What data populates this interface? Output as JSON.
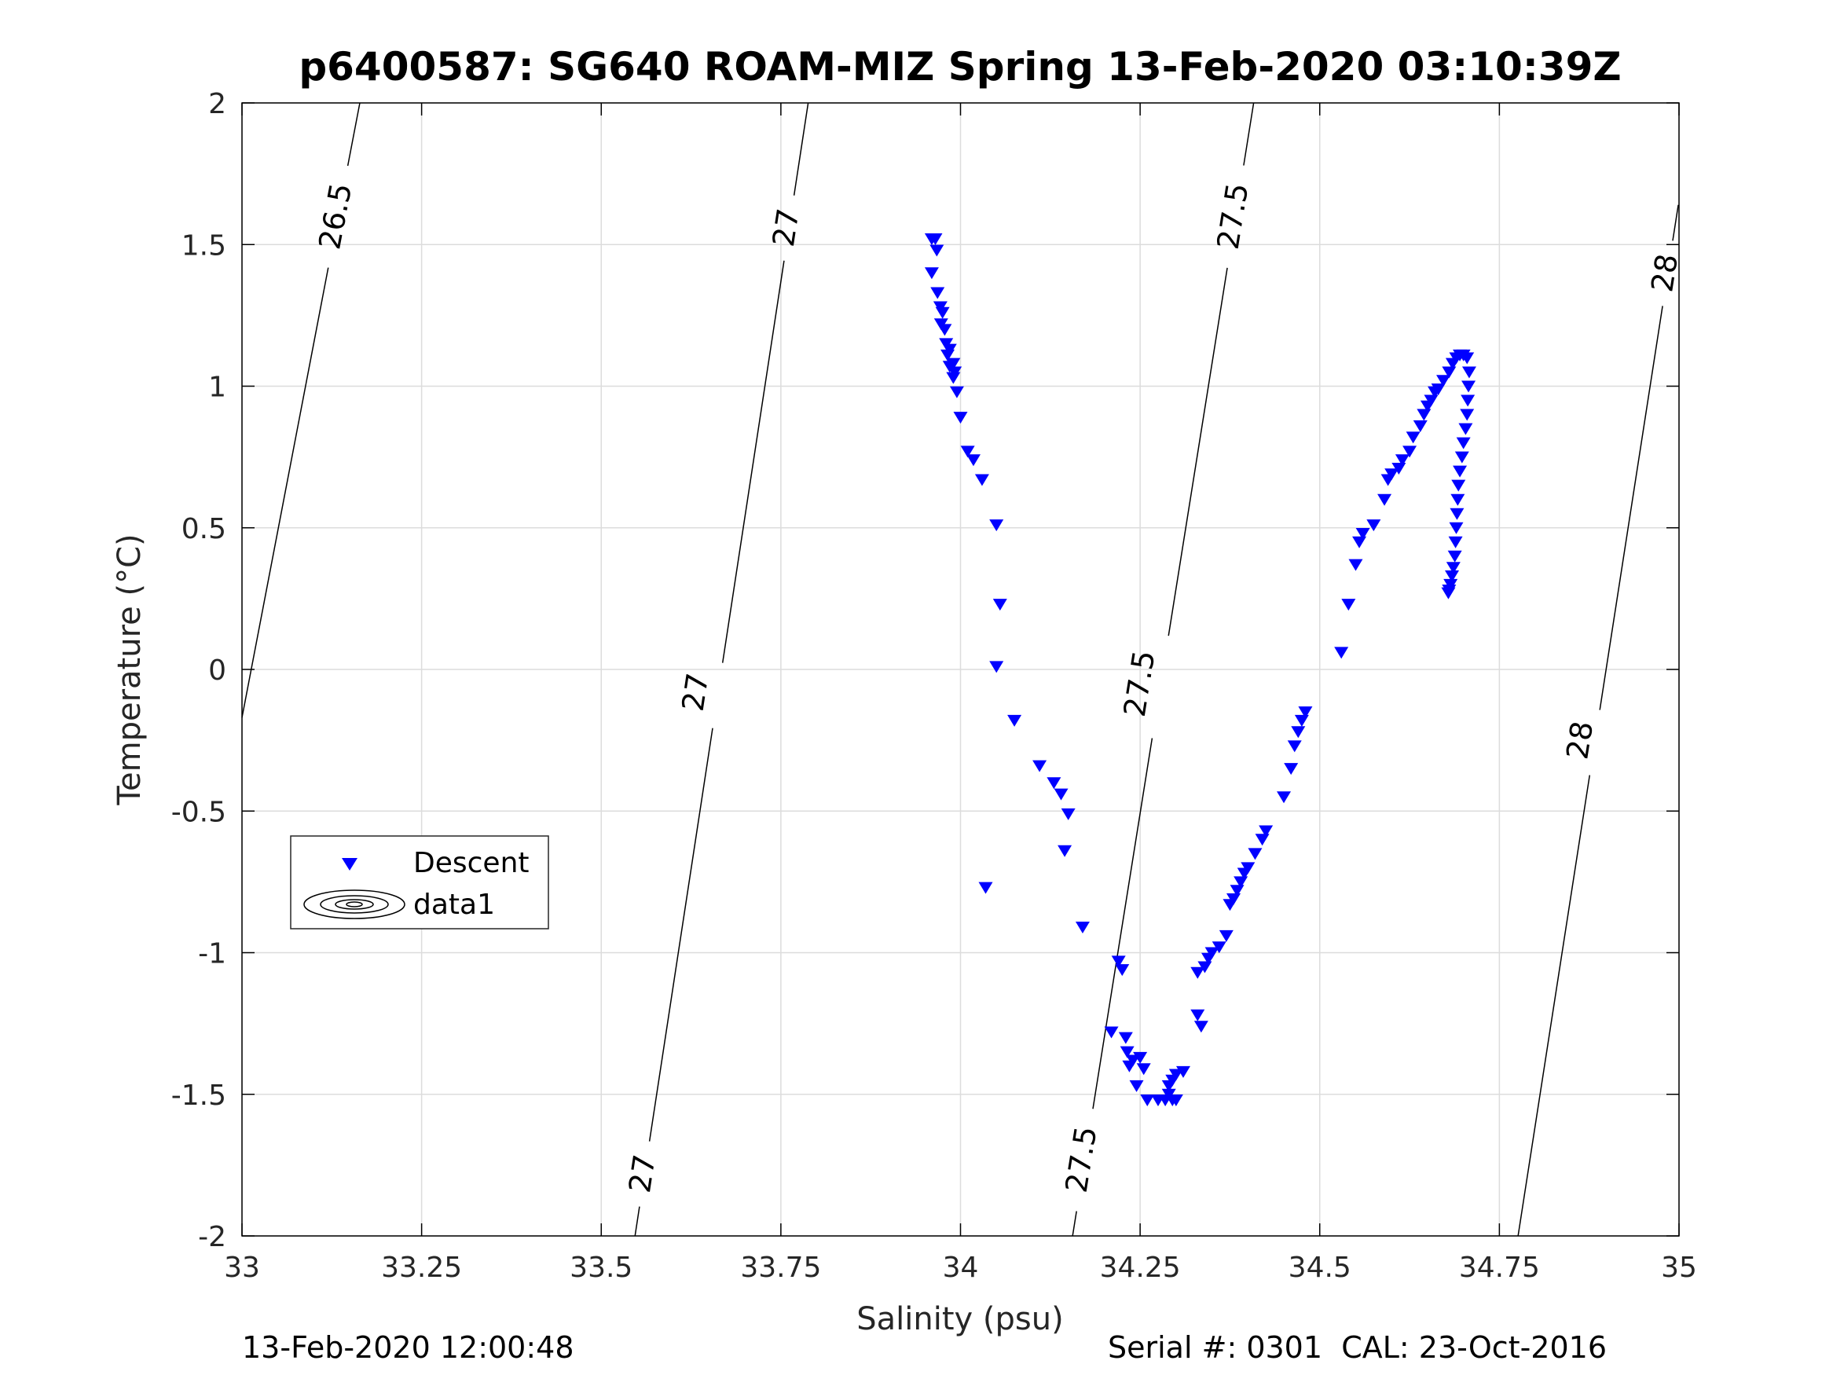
{
  "chart_data": {
    "type": "scatter",
    "title": "p6400587: SG640 ROAM-MIZ Spring 13-Feb-2020 03:10:39Z",
    "xlabel": "Salinity (psu)",
    "ylabel": "Temperature (°C)",
    "xlim": [
      33,
      35
    ],
    "ylim": [
      -2,
      2
    ],
    "xticks": [
      33,
      33.25,
      33.5,
      33.75,
      34,
      34.25,
      34.5,
      34.75,
      35
    ],
    "xtick_labels": [
      "33",
      "33.25",
      "33.5",
      "33.75",
      "34",
      "34.25",
      "34.5",
      "34.75",
      "35"
    ],
    "yticks": [
      -2,
      -1.5,
      -1,
      -0.5,
      0,
      0.5,
      1,
      1.5,
      2
    ],
    "ytick_labels": [
      "-2",
      "-1.5",
      "-1",
      "-0.5",
      "0",
      "0.5",
      "1",
      "1.5",
      "2"
    ],
    "grid": true,
    "legend_position": "lower-left",
    "legend": [
      {
        "label": "Descent",
        "marker": "down-triangle",
        "color": "#0000ff"
      },
      {
        "label": "data1",
        "marker": "contour-ellipses",
        "color": "#000000"
      }
    ],
    "series": [
      {
        "name": "Descent",
        "marker": "down-triangle",
        "color": "#0000ff",
        "points": [
          [
            33.96,
            1.52
          ],
          [
            33.965,
            1.52
          ],
          [
            33.967,
            1.48
          ],
          [
            33.96,
            1.4
          ],
          [
            33.968,
            1.33
          ],
          [
            33.972,
            1.28
          ],
          [
            33.975,
            1.26
          ],
          [
            33.973,
            1.22
          ],
          [
            33.978,
            1.2
          ],
          [
            33.98,
            1.15
          ],
          [
            33.985,
            1.13
          ],
          [
            33.982,
            1.11
          ],
          [
            33.99,
            1.08
          ],
          [
            33.985,
            1.07
          ],
          [
            33.992,
            1.05
          ],
          [
            33.99,
            1.03
          ],
          [
            33.995,
            0.98
          ],
          [
            34.0,
            0.89
          ],
          [
            34.01,
            0.77
          ],
          [
            34.018,
            0.74
          ],
          [
            34.03,
            0.67
          ],
          [
            34.05,
            0.51
          ],
          [
            34.055,
            0.23
          ],
          [
            34.05,
            0.01
          ],
          [
            34.075,
            -0.18
          ],
          [
            34.11,
            -0.34
          ],
          [
            34.13,
            -0.4
          ],
          [
            34.14,
            -0.44
          ],
          [
            34.15,
            -0.51
          ],
          [
            34.145,
            -0.64
          ],
          [
            34.035,
            -0.77
          ],
          [
            34.17,
            -0.91
          ],
          [
            34.22,
            -1.03
          ],
          [
            34.225,
            -1.06
          ],
          [
            34.21,
            -1.28
          ],
          [
            34.23,
            -1.3
          ],
          [
            34.232,
            -1.35
          ],
          [
            34.24,
            -1.38
          ],
          [
            34.235,
            -1.4
          ],
          [
            34.25,
            -1.37
          ],
          [
            34.255,
            -1.41
          ],
          [
            34.245,
            -1.47
          ],
          [
            34.26,
            -1.52
          ],
          [
            34.275,
            -1.52
          ],
          [
            34.285,
            -1.52
          ],
          [
            34.29,
            -1.5
          ],
          [
            34.295,
            -1.52
          ],
          [
            34.3,
            -1.52
          ],
          [
            34.29,
            -1.47
          ],
          [
            34.295,
            -1.45
          ],
          [
            34.3,
            -1.43
          ],
          [
            34.31,
            -1.42
          ],
          [
            34.33,
            -1.22
          ],
          [
            34.335,
            -1.26
          ],
          [
            34.33,
            -1.07
          ],
          [
            34.34,
            -1.05
          ],
          [
            34.345,
            -1.02
          ],
          [
            34.35,
            -1.0
          ],
          [
            34.36,
            -0.98
          ],
          [
            34.37,
            -0.94
          ],
          [
            34.375,
            -0.83
          ],
          [
            34.38,
            -0.81
          ],
          [
            34.385,
            -0.78
          ],
          [
            34.39,
            -0.75
          ],
          [
            34.395,
            -0.72
          ],
          [
            34.4,
            -0.7
          ],
          [
            34.41,
            -0.65
          ],
          [
            34.42,
            -0.6
          ],
          [
            34.425,
            -0.57
          ],
          [
            34.45,
            -0.45
          ],
          [
            34.46,
            -0.35
          ],
          [
            34.465,
            -0.27
          ],
          [
            34.47,
            -0.22
          ],
          [
            34.475,
            -0.18
          ],
          [
            34.48,
            -0.15
          ],
          [
            34.53,
            0.06
          ],
          [
            34.54,
            0.23
          ],
          [
            34.55,
            0.37
          ],
          [
            34.555,
            0.45
          ],
          [
            34.56,
            0.48
          ],
          [
            34.575,
            0.51
          ],
          [
            34.59,
            0.6
          ],
          [
            34.595,
            0.67
          ],
          [
            34.6,
            0.69
          ],
          [
            34.61,
            0.71
          ],
          [
            34.615,
            0.74
          ],
          [
            34.625,
            0.77
          ],
          [
            34.63,
            0.82
          ],
          [
            34.64,
            0.86
          ],
          [
            34.645,
            0.9
          ],
          [
            34.65,
            0.93
          ],
          [
            34.655,
            0.95
          ],
          [
            34.66,
            0.98
          ],
          [
            34.665,
            0.99
          ],
          [
            34.672,
            1.02
          ],
          [
            34.68,
            1.05
          ],
          [
            34.685,
            1.08
          ],
          [
            34.69,
            1.1
          ],
          [
            34.695,
            1.11
          ],
          [
            34.7,
            1.11
          ],
          [
            34.705,
            1.1
          ],
          [
            34.708,
            1.05
          ],
          [
            34.707,
            1.0
          ],
          [
            34.706,
            0.95
          ],
          [
            34.705,
            0.9
          ],
          [
            34.703,
            0.85
          ],
          [
            34.7,
            0.8
          ],
          [
            34.698,
            0.75
          ],
          [
            34.695,
            0.7
          ],
          [
            34.693,
            0.65
          ],
          [
            34.692,
            0.6
          ],
          [
            34.691,
            0.55
          ],
          [
            34.69,
            0.5
          ],
          [
            34.689,
            0.45
          ],
          [
            34.688,
            0.4
          ],
          [
            34.686,
            0.36
          ],
          [
            34.684,
            0.33
          ],
          [
            34.682,
            0.3
          ],
          [
            34.68,
            0.28
          ],
          [
            34.679,
            0.27
          ]
        ]
      }
    ],
    "contours": [
      {
        "level": "26.5",
        "x": [
          33.0,
          33.164
        ],
        "y": [
          -0.17,
          2.0
        ],
        "labels": [
          {
            "text": "26.5",
            "x": 33.13,
            "y": 1.6
          }
        ]
      },
      {
        "level": "27",
        "x": [
          33.547,
          33.788
        ],
        "y": [
          -2.0,
          2.0
        ],
        "labels": [
          {
            "text": "27",
            "x": 33.757,
            "y": 1.56
          },
          {
            "text": "27",
            "x": 33.631,
            "y": -0.08
          },
          {
            "text": "27",
            "x": 33.557,
            "y": -1.78
          }
        ]
      },
      {
        "level": "27.5",
        "x": [
          34.156,
          34.408
        ],
        "y": [
          -2.0,
          2.0
        ],
        "labels": [
          {
            "text": "27.5",
            "x": 34.379,
            "y": 1.6
          },
          {
            "text": "27.5",
            "x": 34.249,
            "y": -0.05
          },
          {
            "text": "27.5",
            "x": 34.168,
            "y": -1.73
          }
        ]
      },
      {
        "level": "28",
        "x": [
          34.776,
          34.999
        ],
        "y": [
          -2.0,
          1.64
        ],
        "labels": [
          {
            "text": "28",
            "x": 34.98,
            "y": 1.4
          },
          {
            "text": "28",
            "x": 34.862,
            "y": -0.25
          }
        ]
      }
    ]
  },
  "footer": {
    "timestamp": "13-Feb-2020 12:00:48",
    "serial": "Serial #: 0301  CAL: 23-Oct-2016"
  }
}
